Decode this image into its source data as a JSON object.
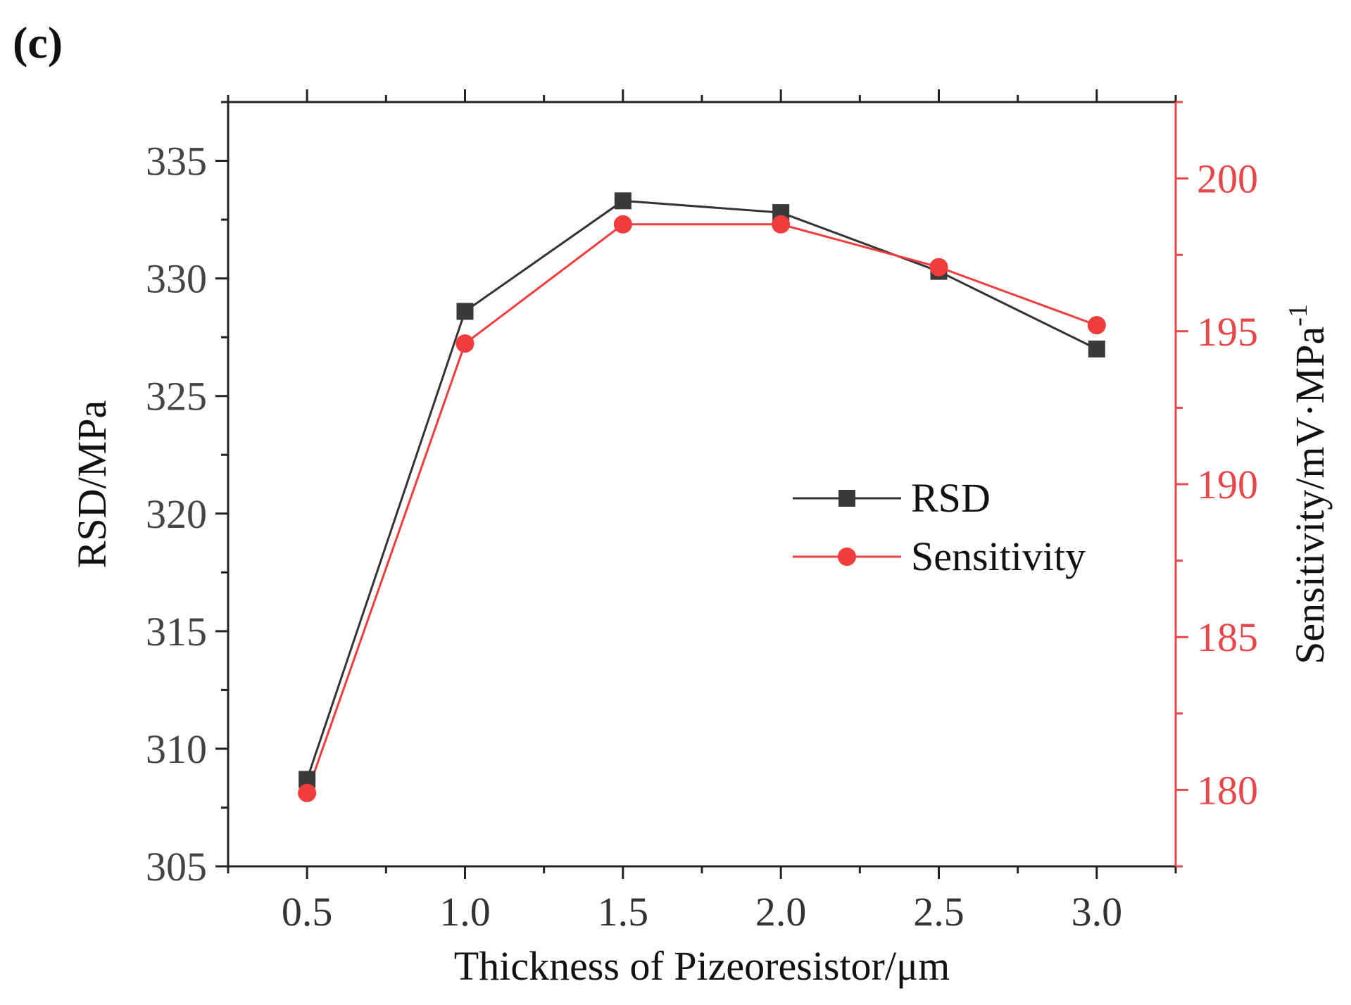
{
  "panel_label": "(c)",
  "chart_data": {
    "type": "line",
    "title": "",
    "xlabel": "Thickness of Pizeoresistor/μm",
    "ylabel": "RSD/MPa",
    "y2label": "Sensitivity/mV·MPa",
    "y2label_sup": "-1",
    "x": [
      0.5,
      1.0,
      1.5,
      2.0,
      2.5,
      3.0
    ],
    "xlim": [
      0.25,
      3.25
    ],
    "ylim": [
      305,
      337.5
    ],
    "y2lim": [
      177.5,
      202.5
    ],
    "xticks": [
      "0.5",
      "1.0",
      "1.5",
      "2.0",
      "2.5",
      "3.0"
    ],
    "yticks": [
      "305",
      "310",
      "315",
      "320",
      "325",
      "330",
      "335"
    ],
    "y2ticks": [
      "180",
      "185",
      "190",
      "195",
      "200"
    ],
    "grid": false,
    "legend_position": "center-right",
    "series": [
      {
        "name": "RSD",
        "axis": "left",
        "marker": "square",
        "color": "#3a3a3a",
        "line_color": "#333333",
        "values": [
          308.7,
          328.6,
          333.3,
          332.8,
          330.3,
          327.0
        ]
      },
      {
        "name": "Sensitivity",
        "axis": "right",
        "marker": "circle",
        "color": "#f03c3c",
        "line_color": "#f03c3c",
        "values": [
          179.9,
          194.6,
          198.5,
          198.5,
          197.1,
          195.2
        ]
      }
    ],
    "right_axis_color": "#e8474a"
  }
}
